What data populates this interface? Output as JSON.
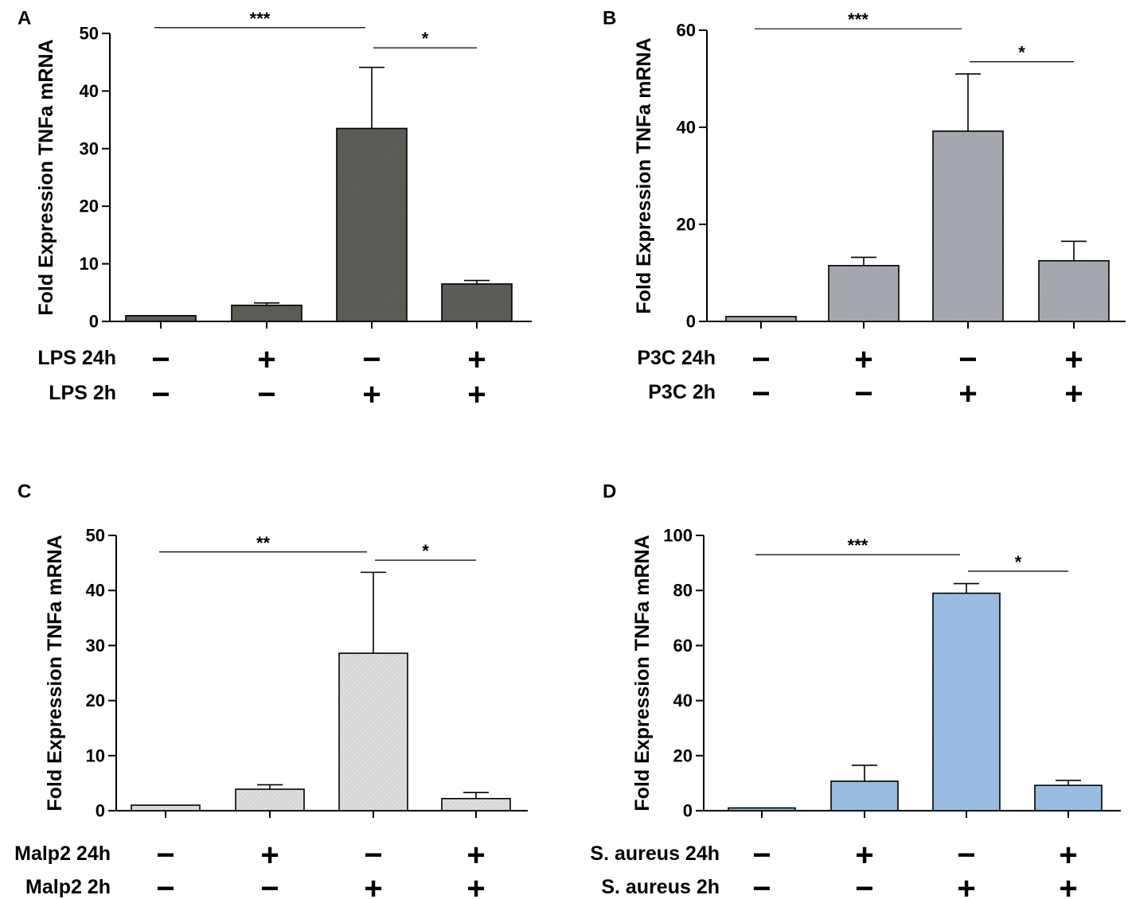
{
  "figure": {
    "alt": "Fold expression of TNFa mRNA under four stimulation conditions"
  },
  "chart_data": [
    {
      "id": "A",
      "type": "bar",
      "panel_label": "A",
      "ylabel": "Fold Expression TNFa mRNA",
      "ylim": [
        0,
        50
      ],
      "yticks": [
        0,
        10,
        20,
        30,
        40,
        50
      ],
      "fill": "#5b5d56",
      "categories": [
        "LPS- / 2h-",
        "LPS 24h+ / 2h-",
        "LPS 24h- / 2h+",
        "LPS 24h+ / 2h+"
      ],
      "values": [
        1,
        2.8,
        33.5,
        6.5
      ],
      "errors": [
        0,
        0.4,
        10.6,
        0.6
      ],
      "conditions": [
        {
          "label": "LPS 24h",
          "signs": [
            "−",
            "+",
            "−",
            "+"
          ]
        },
        {
          "label": "LPS 2h",
          "signs": [
            "−",
            "−",
            "+",
            "+"
          ]
        }
      ],
      "significance": [
        {
          "from": 0,
          "to": 2,
          "label": "***",
          "y": 51
        },
        {
          "from": 2,
          "to": 3,
          "label": "*",
          "y": 47.5
        }
      ]
    },
    {
      "id": "B",
      "type": "bar",
      "panel_label": "B",
      "ylabel": "Fold Expression TNFa mRNA",
      "ylim": [
        0,
        60
      ],
      "yticks": [
        0,
        20,
        40,
        60
      ],
      "fill": "#a7a9b0",
      "categories": [
        "P3C- / 2h-",
        "P3C 24h+ / 2h-",
        "P3C 24h- / 2h+",
        "P3C 24h+ / 2h+"
      ],
      "values": [
        1,
        11.5,
        39.2,
        12.5
      ],
      "errors": [
        0,
        1.7,
        11.8,
        4
      ],
      "conditions": [
        {
          "label": "P3C 24h",
          "signs": [
            "−",
            "+",
            "−",
            "+"
          ]
        },
        {
          "label": "P3C 2h",
          "signs": [
            "−",
            "−",
            "+",
            "+"
          ]
        }
      ],
      "significance": [
        {
          "from": 0,
          "to": 2,
          "label": "***",
          "y": 60.3
        },
        {
          "from": 2,
          "to": 3,
          "label": "*",
          "y": 53.5
        }
      ]
    },
    {
      "id": "C",
      "type": "bar",
      "panel_label": "C",
      "ylabel": "Fold Expression TNFa mRNA",
      "ylim": [
        0,
        50
      ],
      "yticks": [
        0,
        10,
        20,
        30,
        40,
        50
      ],
      "fill": "#dcdddc",
      "categories": [
        "Malp2- / 2h-",
        "Malp2 24h+ / 2h-",
        "Malp2 24h- / 2h+",
        "Malp2 24h+ / 2h+"
      ],
      "values": [
        1,
        3.9,
        28.6,
        2.2
      ],
      "errors": [
        0,
        0.8,
        14.7,
        1.1
      ],
      "conditions": [
        {
          "label": "Malp2 24h",
          "signs": [
            "−",
            "+",
            "−",
            "+"
          ]
        },
        {
          "label": "Malp2 2h",
          "signs": [
            "−",
            "−",
            "+",
            "+"
          ]
        }
      ],
      "significance": [
        {
          "from": 0,
          "to": 2,
          "label": "**",
          "y": 47
        },
        {
          "from": 2,
          "to": 3,
          "label": "*",
          "y": 45.5
        }
      ]
    },
    {
      "id": "D",
      "type": "bar",
      "panel_label": "D",
      "ylabel": "Fold Expression TNFa mRNA",
      "ylim": [
        0,
        100
      ],
      "yticks": [
        0,
        20,
        40,
        60,
        80,
        100
      ],
      "fill": "#9bbfe4",
      "categories": [
        "S. aureus- / 2h-",
        "S. aureus 24h+ / 2h-",
        "S. aureus 24h- / 2h+",
        "S. aureus 24h+ / 2h+"
      ],
      "values": [
        1,
        10.7,
        79,
        9.2
      ],
      "errors": [
        0,
        5.8,
        3.5,
        1.8
      ],
      "conditions": [
        {
          "label": "S. aureus 24h",
          "signs": [
            "−",
            "+",
            "−",
            "+"
          ]
        },
        {
          "label": "S. aureus 2h",
          "signs": [
            "−",
            "−",
            "+",
            "+"
          ]
        }
      ],
      "significance": [
        {
          "from": 0,
          "to": 2,
          "label": "***",
          "y": 93
        },
        {
          "from": 2,
          "to": 3,
          "label": "*",
          "y": 87
        }
      ]
    }
  ]
}
